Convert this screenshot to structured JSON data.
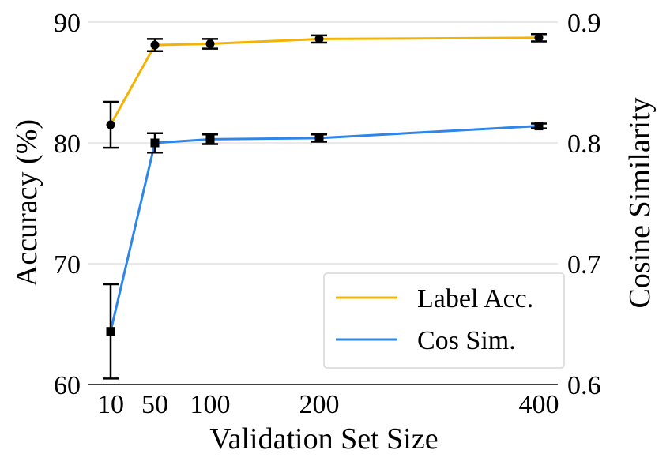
{
  "chart_data": {
    "type": "line",
    "x": [
      10,
      50,
      100,
      200,
      400
    ],
    "x_tick_labels": [
      "10",
      "50",
      "100",
      "200",
      "400"
    ],
    "xlabel": "Validation Set Size",
    "ylabel_left": "Accuracy (%)",
    "ylabel_right": "Cosine Similarity",
    "ylim_left": [
      60,
      90
    ],
    "ylim_right": [
      0.6,
      0.9
    ],
    "y_ticks_left": [
      60,
      70,
      80,
      90
    ],
    "y_tick_labels_left": [
      "60",
      "70",
      "80",
      "90"
    ],
    "y_ticks_right": [
      0.6,
      0.7,
      0.8,
      0.9
    ],
    "y_tick_labels_right": [
      "0.6",
      "0.7",
      "0.8",
      "0.9"
    ],
    "grid": "horizontal",
    "legend_position": "lower-right",
    "series": [
      {
        "name": "Label Acc.",
        "axis": "left",
        "color": "#F5B300",
        "marker": "circle",
        "values": [
          81.5,
          88.1,
          88.2,
          88.6,
          88.7
        ],
        "error": [
          1.9,
          0.5,
          0.4,
          0.3,
          0.3
        ]
      },
      {
        "name": "Cos Sim.",
        "axis": "right",
        "color": "#2E86E8",
        "marker": "square",
        "values": [
          0.644,
          0.8,
          0.803,
          0.804,
          0.814
        ],
        "error": [
          0.039,
          0.008,
          0.004,
          0.003,
          0.002
        ]
      }
    ]
  }
}
